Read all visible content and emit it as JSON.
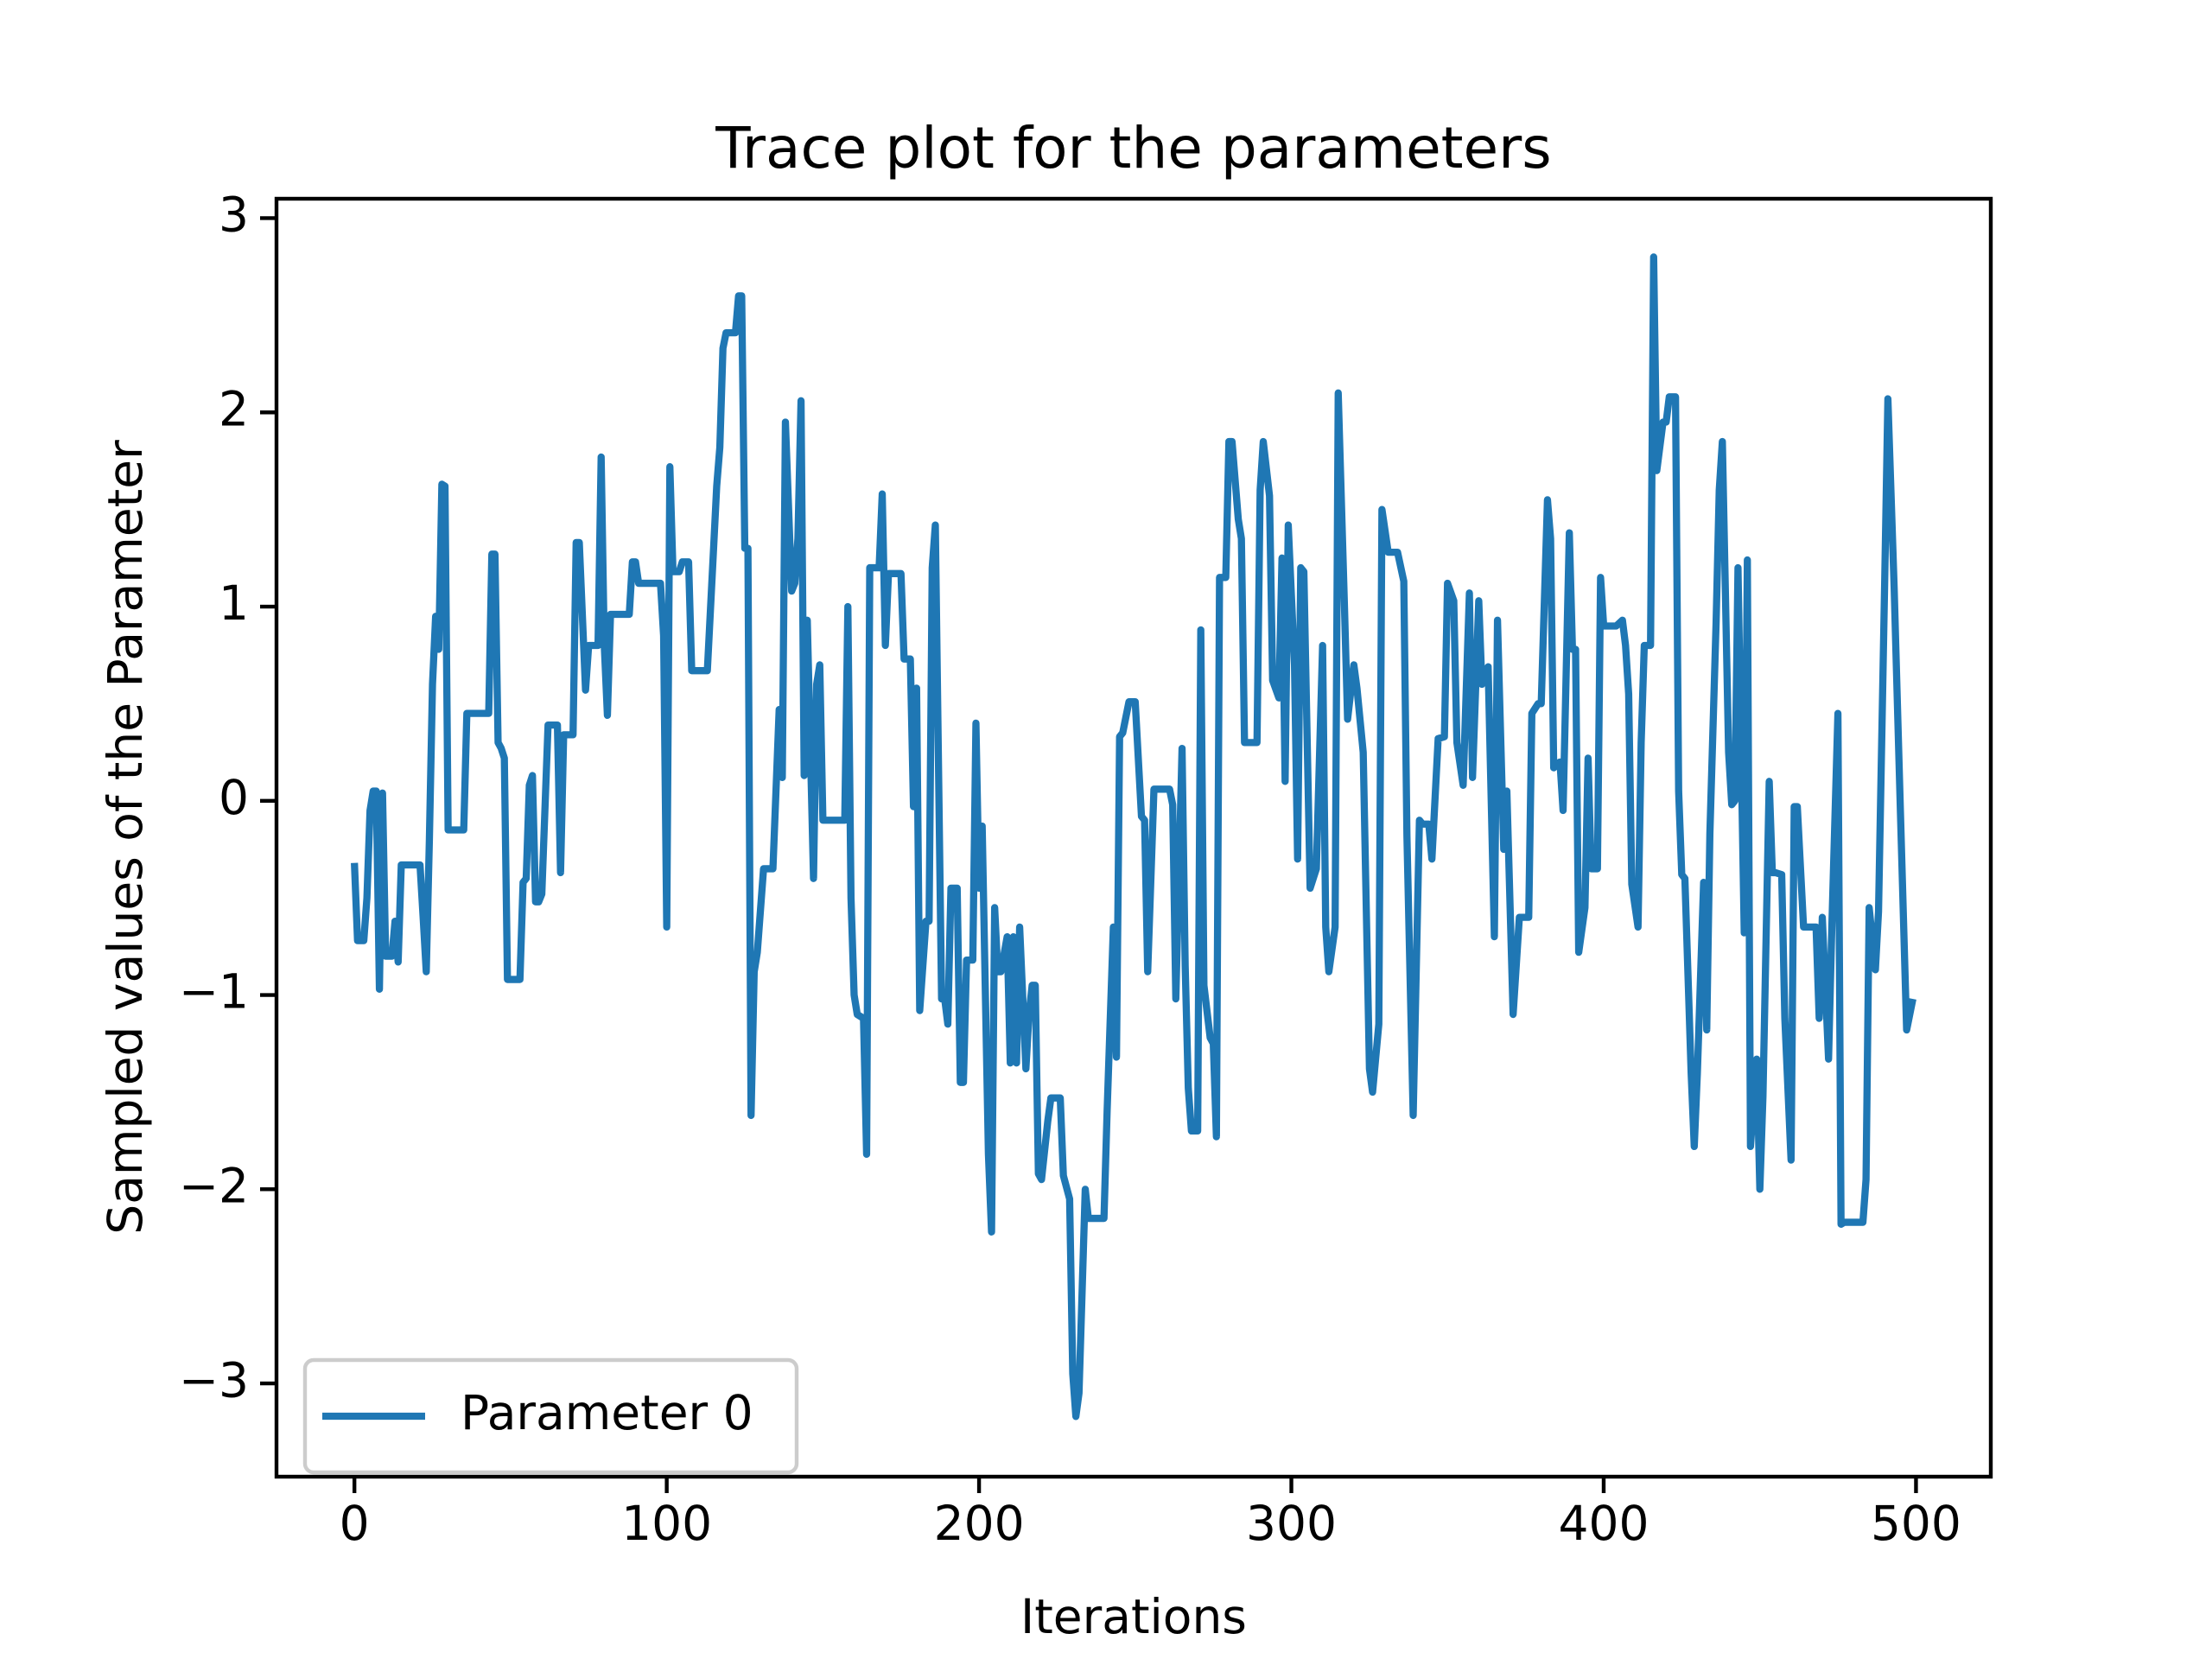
{
  "chart_data": {
    "type": "line",
    "title": "Trace plot for the parameters",
    "x_label": "Iterations",
    "y_label": "Sampled values of the Parameter",
    "x": [
      0,
      1,
      3,
      4,
      5,
      6,
      7,
      8,
      9,
      10,
      12,
      13,
      14,
      15,
      21,
      22,
      23,
      24,
      25,
      26,
      27,
      28,
      29,
      30,
      35,
      36,
      43,
      44,
      45,
      46,
      47,
      48,
      49,
      53,
      54,
      55,
      56,
      57,
      58,
      59,
      60,
      62,
      65,
      66,
      67,
      70,
      71,
      72,
      74,
      75,
      78,
      79,
      80,
      81,
      82,
      88,
      89,
      90,
      91,
      98,
      99,
      100,
      101,
      102,
      104,
      105,
      107,
      108,
      113,
      115,
      116,
      117,
      118,
      119,
      122,
      123,
      124,
      125,
      126,
      127,
      128,
      129,
      131,
      134,
      136,
      137,
      138,
      140,
      141,
      142,
      143,
      144,
      145,
      147,
      148,
      149,
      150,
      157,
      158,
      159,
      160,
      161,
      163,
      164,
      165,
      168,
      169,
      170,
      171,
      175,
      176,
      178,
      179,
      180,
      181,
      183,
      184,
      185,
      186,
      188,
      189,
      190,
      191,
      193,
      194,
      195,
      196,
      198,
      199,
      200,
      201,
      203,
      204,
      205,
      206,
      207,
      209,
      210,
      211,
      212,
      213,
      215,
      216,
      217,
      218,
      219,
      220,
      222,
      223,
      226,
      227,
      229,
      230,
      231,
      232,
      234,
      235,
      240,
      241,
      243,
      244,
      245,
      246,
      248,
      250,
      252,
      253,
      254,
      256,
      261,
      262,
      263,
      265,
      266,
      267,
      268,
      270,
      271,
      272,
      274,
      275,
      276,
      277,
      279,
      280,
      281,
      283,
      284,
      285,
      289,
      290,
      291,
      293,
      294,
      296,
      297,
      298,
      299,
      301,
      302,
      303,
      304,
      306,
      307,
      308,
      310,
      311,
      312,
      314,
      315,
      317,
      318,
      320,
      321,
      323,
      325,
      326,
      328,
      329,
      331,
      334,
      336,
      337,
      339,
      341,
      342,
      344,
      345,
      347,
      349,
      350,
      352,
      353,
      355,
      357,
      358,
      360,
      361,
      363,
      365,
      366,
      368,
      369,
      371,
      373,
      376,
      377,
      379,
      380,
      382,
      383,
      384,
      386,
      387,
      389,
      390,
      391,
      392,
      394,
      395,
      396,
      398,
      399,
      400,
      404,
      406,
      407,
      408,
      409,
      411,
      412,
      413,
      415,
      416,
      417,
      419,
      420,
      421,
      423,
      424,
      425,
      426,
      428,
      429,
      430,
      432,
      433,
      434,
      436,
      437,
      438,
      440,
      441,
      442,
      443,
      445,
      446,
      447,
      449,
      450,
      451,
      453,
      454,
      455,
      457,
      458,
      460,
      461,
      462,
      464,
      468,
      469,
      470,
      472,
      473,
      475,
      476,
      477,
      483,
      484,
      485,
      487,
      488,
      490,
      491,
      493,
      495,
      497,
      499
    ],
    "series": [
      {
        "name": "Parameter 0",
        "color": "#1f77b4",
        "values": [
          -0.32,
          -0.72,
          -0.72,
          -0.5,
          -0.05,
          0.05,
          0.05,
          -0.97,
          0.04,
          -0.8,
          -0.8,
          -0.62,
          -0.83,
          -0.33,
          -0.33,
          -0.6,
          -0.88,
          -0.2,
          0.6,
          0.95,
          0.78,
          1.63,
          1.62,
          -0.15,
          -0.15,
          0.45,
          0.45,
          1.27,
          1.27,
          0.3,
          0.27,
          0.22,
          -0.92,
          -0.92,
          -0.42,
          -0.4,
          0.08,
          0.13,
          -0.52,
          -0.52,
          -0.48,
          0.39,
          0.39,
          -0.37,
          0.34,
          0.34,
          1.33,
          1.33,
          0.57,
          0.8,
          0.8,
          1.77,
          0.8,
          0.44,
          0.96,
          0.96,
          1.23,
          1.23,
          1.12,
          1.12,
          0.85,
          -0.65,
          1.72,
          1.18,
          1.18,
          1.23,
          1.23,
          0.67,
          0.67,
          1.3,
          1.62,
          1.82,
          2.33,
          2.41,
          2.41,
          2.6,
          2.6,
          1.3,
          1.3,
          -1.62,
          -0.88,
          -0.78,
          -0.35,
          -0.35,
          0.47,
          0.12,
          1.95,
          1.08,
          1.12,
          1.35,
          2.06,
          0.13,
          0.93,
          -0.4,
          0.6,
          0.7,
          -0.1,
          -0.1,
          1.0,
          -0.5,
          -1.0,
          -1.1,
          -1.12,
          -1.82,
          1.2,
          1.2,
          1.58,
          0.8,
          1.17,
          1.17,
          0.73,
          0.73,
          -0.03,
          0.58,
          -1.08,
          -0.62,
          -0.62,
          1.2,
          1.42,
          -1.02,
          -1.02,
          -1.15,
          -0.45,
          -0.45,
          -1.45,
          -1.45,
          -0.82,
          -0.82,
          0.4,
          -0.45,
          -0.13,
          -1.82,
          -2.22,
          -0.55,
          -0.88,
          -0.88,
          -0.7,
          -1.35,
          -0.7,
          -1.35,
          -0.65,
          -1.38,
          -1.1,
          -0.95,
          -0.95,
          -1.92,
          -1.95,
          -1.65,
          -1.53,
          -1.53,
          -1.93,
          -2.05,
          -2.95,
          -3.17,
          -3.05,
          -2.0,
          -2.15,
          -2.15,
          -1.6,
          -0.65,
          -1.32,
          0.33,
          0.35,
          0.51,
          0.51,
          -0.08,
          -0.1,
          -0.88,
          0.06,
          0.06,
          -0.02,
          -1.02,
          0.27,
          -0.85,
          -1.48,
          -1.7,
          -1.7,
          0.88,
          -0.95,
          -1.22,
          -1.25,
          -1.73,
          1.15,
          1.15,
          1.85,
          1.85,
          1.45,
          1.35,
          0.3,
          0.3,
          1.6,
          1.85,
          1.57,
          0.62,
          0.53,
          1.25,
          0.1,
          1.42,
          0.7,
          -0.3,
          1.2,
          1.18,
          -0.45,
          -0.4,
          -0.35,
          0.8,
          -0.65,
          -0.88,
          -0.65,
          2.1,
          1.0,
          0.42,
          0.7,
          0.58,
          0.25,
          -1.38,
          -1.5,
          -1.15,
          1.5,
          1.28,
          1.28,
          1.13,
          -0.18,
          -1.62,
          -0.1,
          -0.12,
          -0.12,
          -0.3,
          0.32,
          0.33,
          1.12,
          1.03,
          0.3,
          0.08,
          1.07,
          0.12,
          1.03,
          0.6,
          0.69,
          -0.7,
          0.93,
          -0.25,
          0.05,
          -1.1,
          -0.6,
          -0.6,
          0.45,
          0.5,
          0.5,
          1.55,
          1.35,
          0.17,
          0.2,
          -0.05,
          1.38,
          0.78,
          0.78,
          -0.78,
          -0.55,
          0.22,
          -0.35,
          -0.35,
          1.15,
          0.9,
          0.9,
          0.93,
          0.8,
          0.55,
          -0.43,
          -0.65,
          0.3,
          0.8,
          0.8,
          2.8,
          1.7,
          1.95,
          1.95,
          2.08,
          2.08,
          0.05,
          -0.38,
          -0.4,
          -1.4,
          -1.78,
          -1.4,
          -0.42,
          -1.18,
          -0.17,
          0.92,
          1.6,
          1.85,
          0.25,
          -0.02,
          0.0,
          1.2,
          -0.68,
          1.24,
          -1.78,
          -1.33,
          -2.0,
          -1.52,
          0.1,
          -0.37,
          -0.37,
          -0.38,
          -1.12,
          -1.85,
          -0.03,
          -0.03,
          -0.65,
          -0.65,
          -1.12,
          -0.6,
          -1.33,
          -0.68,
          0.45,
          -2.18,
          -2.17,
          -2.17,
          -1.95,
          -0.55,
          -0.87,
          -0.57,
          1.15,
          2.07,
          1.1,
          -0.05,
          -1.18,
          -1.02
        ]
      }
    ],
    "xlim": [
      -24.95,
      523.95
    ],
    "xticks": [
      0,
      100,
      200,
      300,
      400,
      500
    ],
    "ylim": [
      -3.48,
      3.1
    ],
    "yticks": [
      {
        "value": -3,
        "label": "−3"
      },
      {
        "value": -2,
        "label": "−2"
      },
      {
        "value": -1,
        "label": "−1"
      },
      0,
      1,
      2,
      3
    ],
    "legend": "lower left",
    "grid": false
  }
}
